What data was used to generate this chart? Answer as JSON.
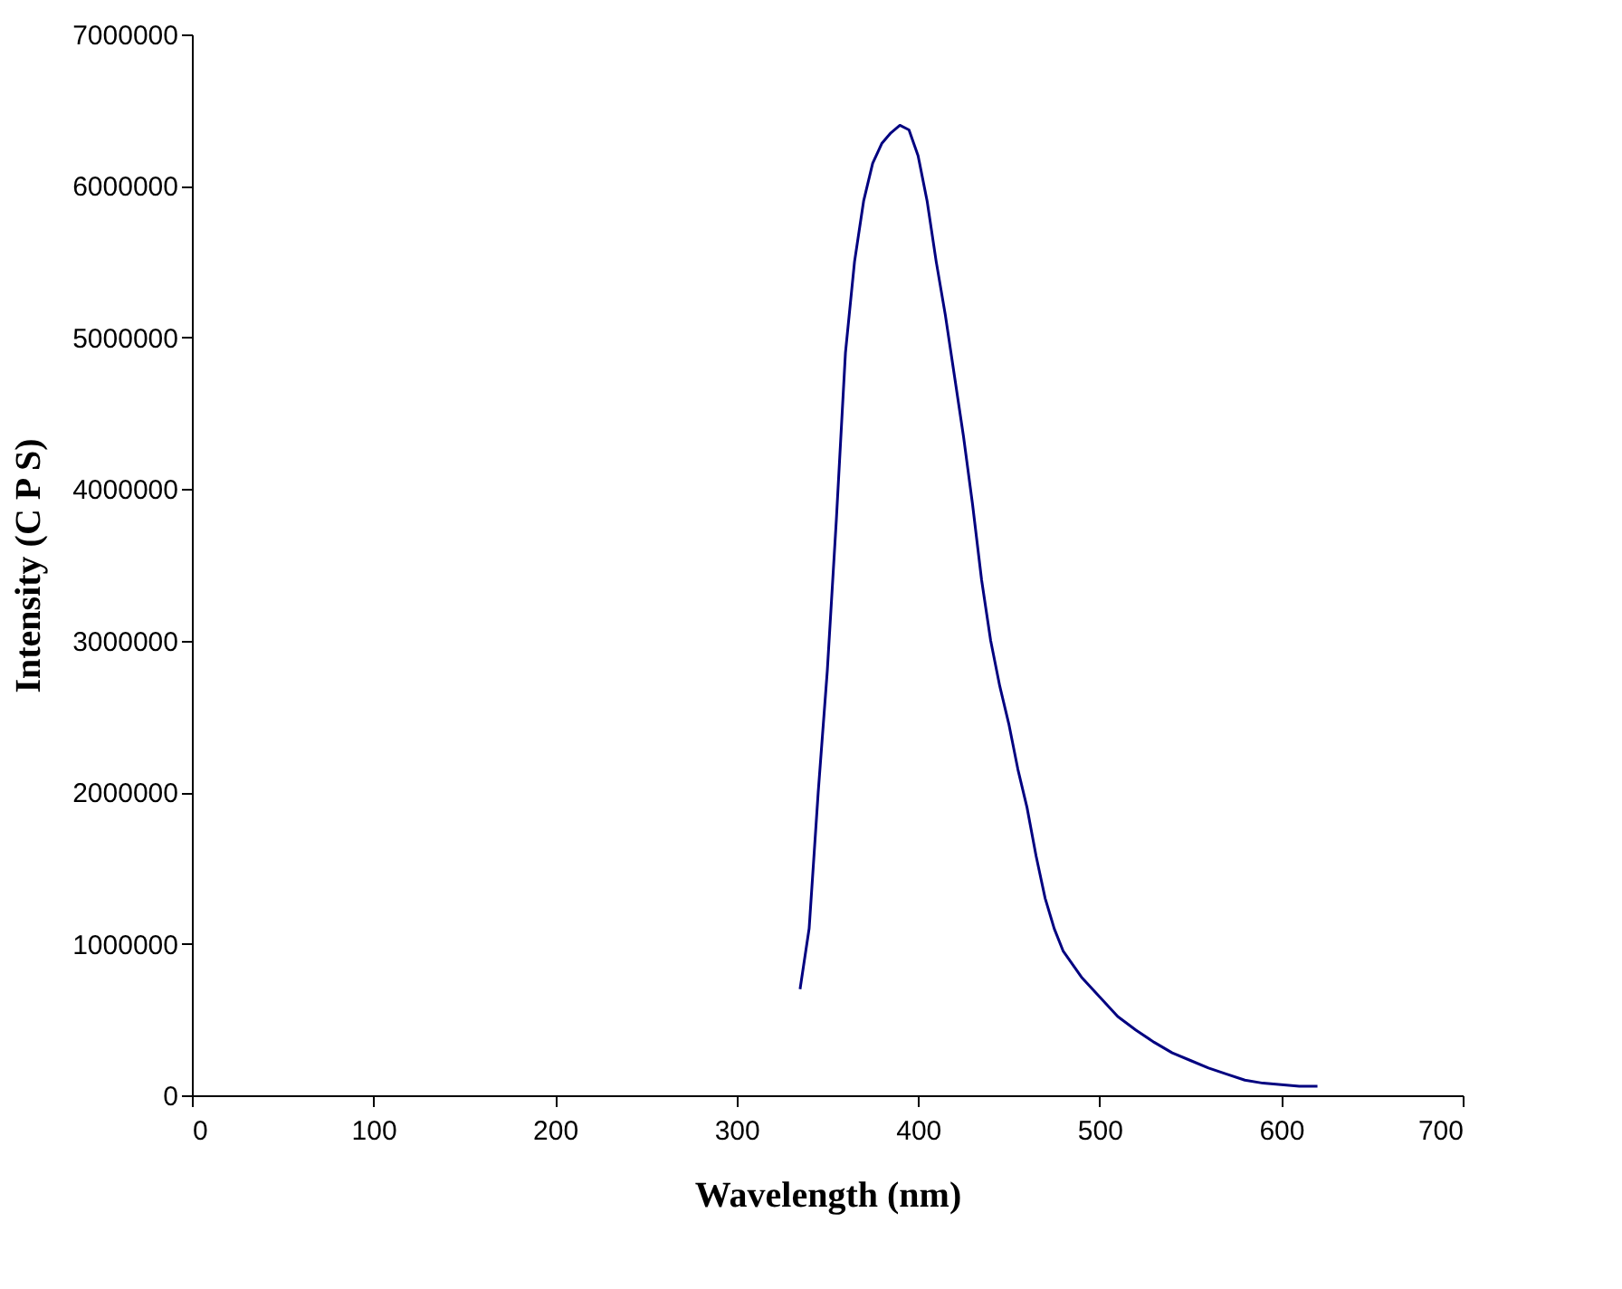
{
  "chart_data": {
    "type": "line",
    "xlabel": "Wavelength  (nm)",
    "ylabel": "Intensity (C P S)",
    "x": [
      335,
      340,
      345,
      350,
      355,
      360,
      365,
      370,
      375,
      380,
      385,
      390,
      395,
      400,
      405,
      410,
      415,
      420,
      425,
      430,
      435,
      440,
      445,
      450,
      455,
      460,
      465,
      470,
      475,
      480,
      490,
      500,
      510,
      520,
      530,
      540,
      550,
      560,
      570,
      580,
      590,
      600,
      610,
      620
    ],
    "series": [
      {
        "color": "#000080",
        "values": [
          700000,
          1100000,
          2000000,
          2800000,
          3800000,
          4900000,
          5500000,
          5900000,
          6150000,
          6280000,
          6350000,
          6400000,
          6370000,
          6200000,
          5900000,
          5500000,
          5150000,
          4750000,
          4350000,
          3900000,
          3400000,
          3000000,
          2700000,
          2450000,
          2150000,
          1900000,
          1580000,
          1300000,
          1100000,
          950000,
          780000,
          650000,
          520000,
          430000,
          350000,
          280000,
          230000,
          180000,
          140000,
          100000,
          80000,
          70000,
          60000,
          60000
        ]
      }
    ],
    "xlim": [
      0,
      700
    ],
    "xticks": [
      0,
      100,
      200,
      300,
      400,
      500,
      600,
      700
    ],
    "ylim": [
      0,
      7000000
    ],
    "yticks": [
      0,
      1000000,
      2000000,
      3000000,
      4000000,
      5000000,
      6000000,
      7000000
    ],
    "grid": false,
    "marker": "none",
    "line_style": "solid"
  }
}
